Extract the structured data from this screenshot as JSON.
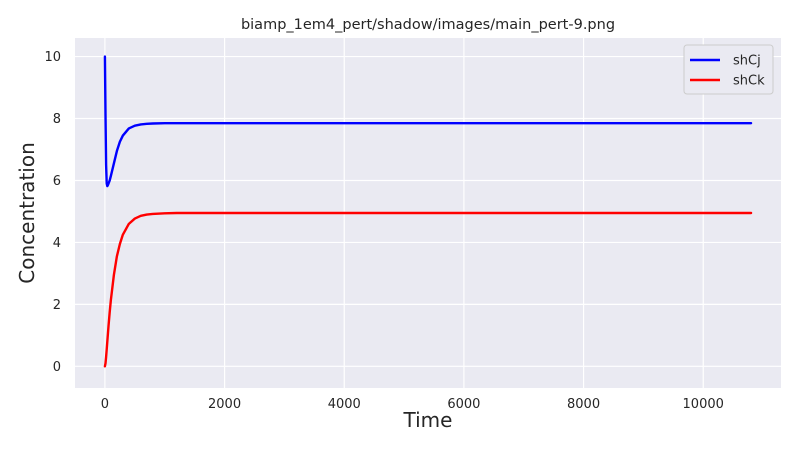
{
  "chart_data": {
    "type": "line",
    "title": "biamp_1em4_pert/shadow/images/main_pert-9.png",
    "xlabel": "Time",
    "ylabel": "Concentration",
    "xlim": [
      -500,
      11300
    ],
    "ylim": [
      -0.7,
      10.6
    ],
    "xticks": [
      0,
      2000,
      4000,
      6000,
      8000,
      10000
    ],
    "yticks": [
      0,
      2,
      4,
      6,
      8,
      10
    ],
    "grid": true,
    "legend_position": "top-right",
    "series": [
      {
        "name": "shCj",
        "color": "#0000ff",
        "x": [
          0,
          10,
          20,
          30,
          40,
          50,
          60,
          80,
          100,
          150,
          200,
          250,
          300,
          400,
          500,
          600,
          700,
          800,
          1000,
          1200,
          1500,
          2000,
          4000,
          6000,
          8000,
          10000,
          10800
        ],
        "y": [
          10.0,
          8.1,
          6.5,
          5.9,
          5.82,
          5.85,
          5.9,
          6.0,
          6.15,
          6.55,
          6.95,
          7.25,
          7.45,
          7.68,
          7.77,
          7.81,
          7.83,
          7.84,
          7.85,
          7.85,
          7.85,
          7.85,
          7.85,
          7.85,
          7.85,
          7.85,
          7.85
        ]
      },
      {
        "name": "shCk",
        "color": "#ff0000",
        "x": [
          0,
          10,
          20,
          30,
          40,
          50,
          60,
          80,
          100,
          150,
          200,
          250,
          300,
          400,
          500,
          600,
          700,
          800,
          1000,
          1200,
          1500,
          2000,
          4000,
          6000,
          8000,
          10000,
          10800
        ],
        "y": [
          0.0,
          0.1,
          0.3,
          0.55,
          0.8,
          1.05,
          1.3,
          1.75,
          2.15,
          2.95,
          3.55,
          3.95,
          4.25,
          4.6,
          4.77,
          4.86,
          4.9,
          4.92,
          4.94,
          4.95,
          4.95,
          4.95,
          4.95,
          4.95,
          4.95,
          4.95,
          4.95
        ]
      }
    ]
  }
}
